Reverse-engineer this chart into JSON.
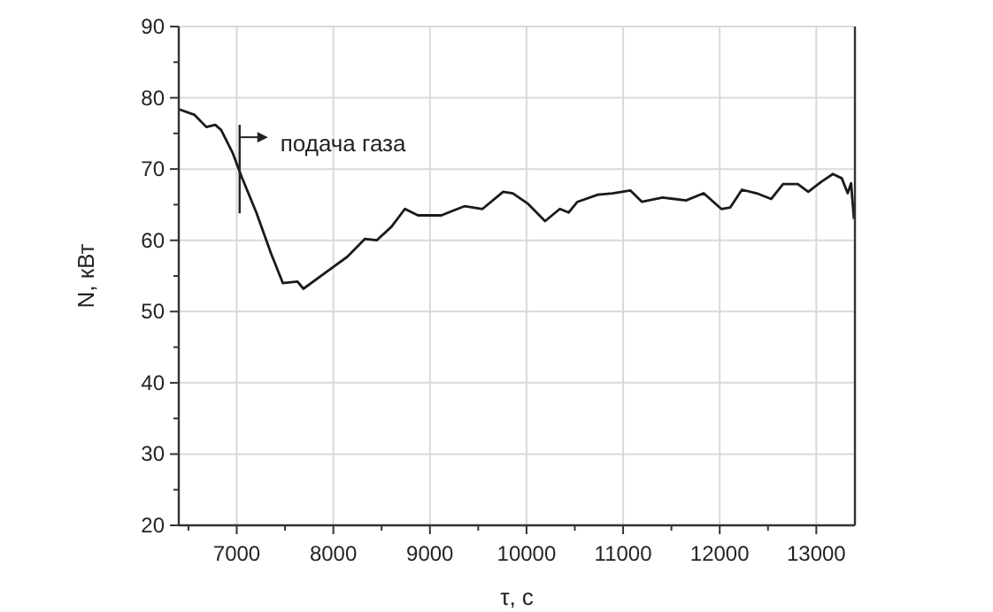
{
  "chart_data": {
    "type": "line",
    "xlabel": "τ, с",
    "ylabel": "N, кВт",
    "xlim": [
      6400,
      13400
    ],
    "ylim": [
      20,
      90
    ],
    "xticks": [
      {
        "value": 6500,
        "label": null
      },
      7000,
      {
        "value": 7500,
        "label": null
      },
      8000,
      {
        "value": 8500,
        "label": null
      },
      9000,
      {
        "value": 9500,
        "label": null
      },
      10000,
      {
        "value": 10500,
        "label": null
      },
      11000,
      {
        "value": 11500,
        "label": null
      },
      12000,
      {
        "value": 12500,
        "label": null
      },
      13000
    ],
    "yticks": [
      20,
      {
        "value": 25,
        "label": null
      },
      30,
      {
        "value": 35,
        "label": null
      },
      40,
      {
        "value": 45,
        "label": null
      },
      50,
      {
        "value": 55,
        "label": null
      },
      60,
      {
        "value": 65,
        "label": null
      },
      70,
      {
        "value": 75,
        "label": null
      },
      80,
      {
        "value": 85,
        "label": null
      },
      90
    ],
    "grid": true,
    "marker": "none",
    "line_style": "solid",
    "annotations": [
      {
        "text": "подача газа",
        "x": 7030,
        "y": 70
      }
    ],
    "series": [
      {
        "color": "#1a1a1a",
        "x": [
          6400,
          6564,
          6686,
          6777,
          6838,
          6960,
          7051,
          7203,
          7354,
          7477,
          7629,
          7690,
          7902,
          8146,
          8328,
          8449,
          8602,
          8741,
          8876,
          9119,
          9362,
          9544,
          9758,
          9858,
          10009,
          10192,
          10345,
          10436,
          10527,
          10739,
          10891,
          11074,
          11195,
          11409,
          11652,
          11834,
          12017,
          12108,
          12230,
          12382,
          12534,
          12656,
          12808,
          12917,
          13051,
          13172,
          13264,
          13325,
          13360,
          13390
        ],
        "values": [
          78.4,
          77.6,
          75.9,
          76.2,
          75.5,
          72.2,
          68.9,
          63.9,
          58.2,
          54.0,
          54.2,
          53.2,
          55.3,
          57.7,
          60.2,
          60.0,
          61.9,
          64.4,
          63.5,
          63.5,
          64.8,
          64.4,
          66.8,
          66.6,
          65.2,
          62.7,
          64.4,
          63.9,
          65.4,
          66.4,
          66.6,
          67.0,
          65.4,
          66.0,
          65.6,
          66.6,
          64.4,
          64.6,
          67.1,
          66.6,
          65.8,
          67.9,
          67.9,
          66.8,
          68.2,
          69.3,
          68.7,
          66.6,
          68.0,
          63.0
        ]
      }
    ]
  }
}
